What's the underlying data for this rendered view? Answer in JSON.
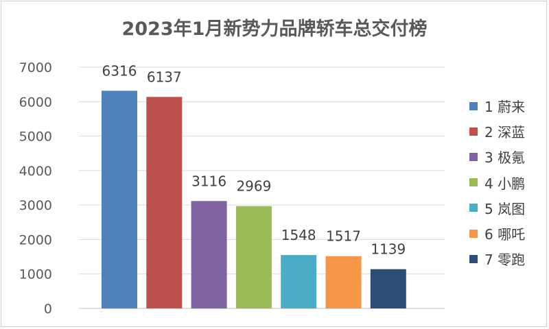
{
  "chart_data": {
    "type": "bar",
    "title": "2023年1月新势力品牌轿车总交付榜",
    "categories": [
      "1 蔚来",
      "2 深蓝",
      "3 极氪",
      "4 小鹏",
      "5 岚图",
      "6 哪吒",
      "7 零跑"
    ],
    "values": [
      6316,
      6137,
      3116,
      2969,
      1548,
      1517,
      1139
    ],
    "colors": [
      "#4f81bd",
      "#c0504d",
      "#8064a2",
      "#9bbb59",
      "#4bacc6",
      "#f79646",
      "#2c4d75"
    ],
    "yticks": [
      "0",
      "1000",
      "2000",
      "3000",
      "4000",
      "5000",
      "6000",
      "7000"
    ],
    "ylim": [
      0,
      7000
    ],
    "grid": true,
    "legend_position": "right",
    "xlabel": "",
    "ylabel": ""
  }
}
